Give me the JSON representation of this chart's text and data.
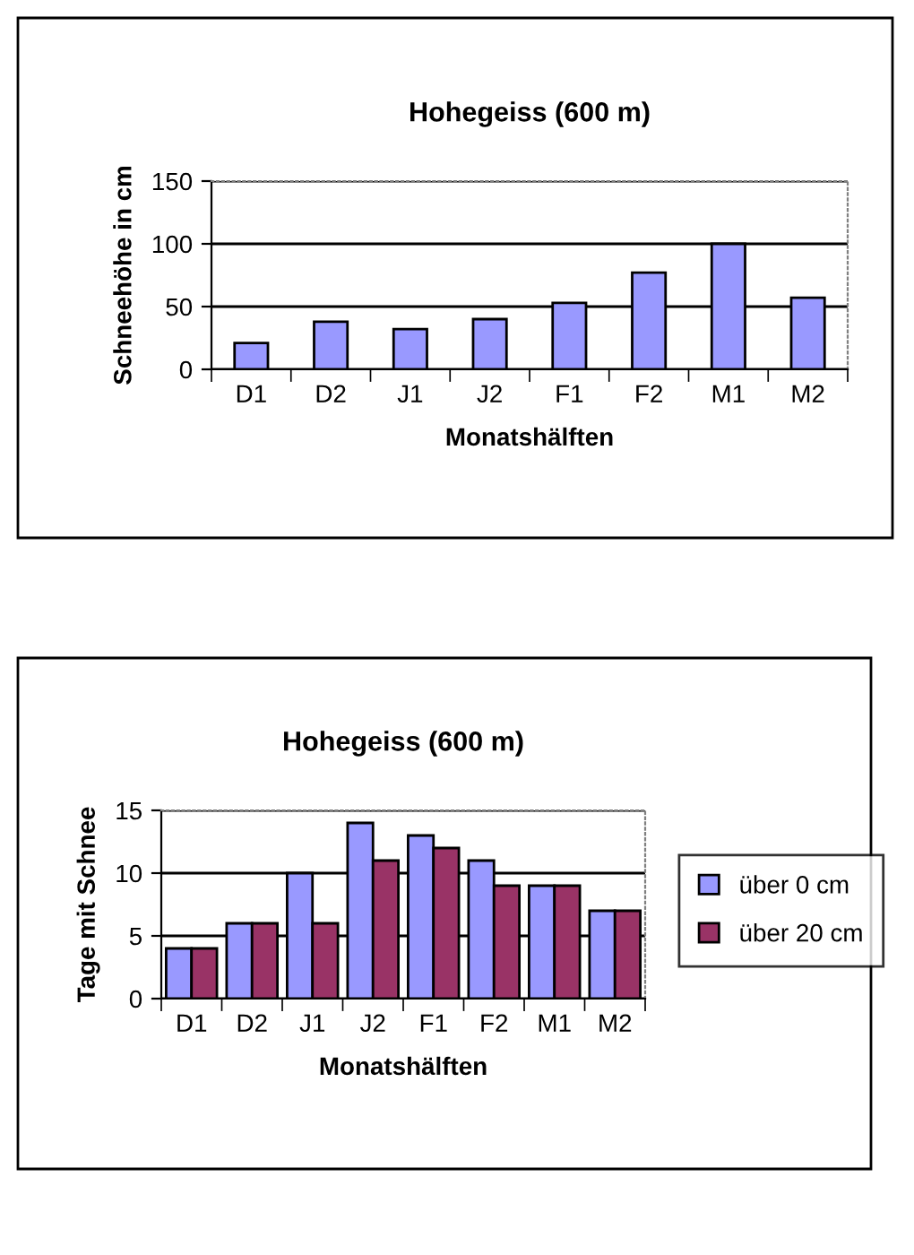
{
  "chart_data": [
    {
      "type": "bar",
      "title": "Hohegeiss (600 m)",
      "xlabel": "Monatshälften",
      "ylabel": "Schneehöhe in cm",
      "categories": [
        "D1",
        "D2",
        "J1",
        "J2",
        "F1",
        "F2",
        "M1",
        "M2"
      ],
      "series": [
        {
          "color": "#9999ff",
          "values": [
            21,
            38,
            32,
            40,
            53,
            77,
            100,
            57
          ]
        }
      ],
      "ylim": [
        0,
        150
      ],
      "yticks": [
        0,
        50,
        100,
        150
      ],
      "grid": "y",
      "legend": false
    },
    {
      "type": "bar",
      "title": "Hohegeiss (600 m)",
      "xlabel": "Monatshälften",
      "ylabel": "Tage mit Schnee",
      "categories": [
        "D1",
        "D2",
        "J1",
        "J2",
        "F1",
        "F2",
        "M1",
        "M2"
      ],
      "series": [
        {
          "name": "über 0 cm",
          "color": "#9999ff",
          "values": [
            4,
            6,
            10,
            14,
            13,
            11,
            9,
            7
          ]
        },
        {
          "name": "über 20 cm",
          "color": "#993366",
          "values": [
            4,
            6,
            6,
            11,
            12,
            9,
            9,
            7
          ]
        }
      ],
      "ylim": [
        0,
        15
      ],
      "yticks": [
        0,
        5,
        10,
        15
      ],
      "grid": "y",
      "legend": "right"
    }
  ]
}
